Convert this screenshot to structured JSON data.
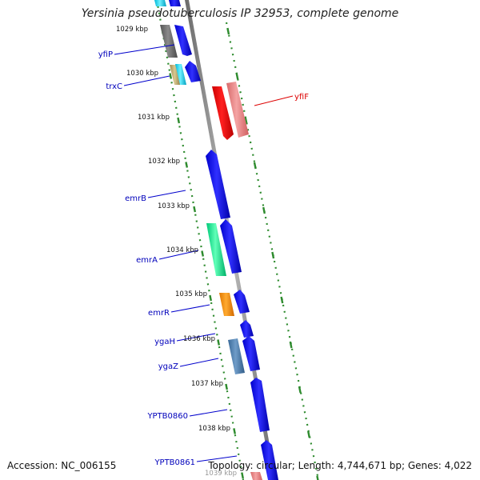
{
  "title": "Yersinia pseudotuberculosis IP 32953, complete genome",
  "footer": {
    "accession": "Accession: NC_006155",
    "topology": "Topology: circular; Length: 4,744,671 bp; Genes: 4,022"
  },
  "ticks": [
    {
      "label": "1029 kbp"
    },
    {
      "label": "1030 kbp"
    },
    {
      "label": "1031 kbp"
    },
    {
      "label": "1032 kbp"
    },
    {
      "label": "1033 kbp"
    },
    {
      "label": "1034 kbp"
    },
    {
      "label": "1035 kbp"
    },
    {
      "label": "1036 kbp"
    },
    {
      "label": "1037 kbp"
    },
    {
      "label": "1038 kbp"
    },
    {
      "label": "1039 kbp"
    }
  ],
  "gene_labels": [
    {
      "text": "yfiP",
      "color": "#0000bb"
    },
    {
      "text": "trxC",
      "color": "#0000bb"
    },
    {
      "text": "yfiF",
      "color": "#dd0000"
    },
    {
      "text": "emrB",
      "color": "#0000bb"
    },
    {
      "text": "emrA",
      "color": "#0000bb"
    },
    {
      "text": "emrR",
      "color": "#0000bb"
    },
    {
      "text": "ygaH",
      "color": "#0000bb"
    },
    {
      "text": "ygaZ",
      "color": "#0000bb"
    },
    {
      "text": "YPTB0860",
      "color": "#0000bb"
    },
    {
      "text": "YPTB0861",
      "color": "#0000bb"
    }
  ],
  "colors": {
    "backbone": "#8a8a8a",
    "tick_dots": "#2e8b2e",
    "forward_gene": "#0000ee",
    "reverse_gene": "#ee0000"
  }
}
